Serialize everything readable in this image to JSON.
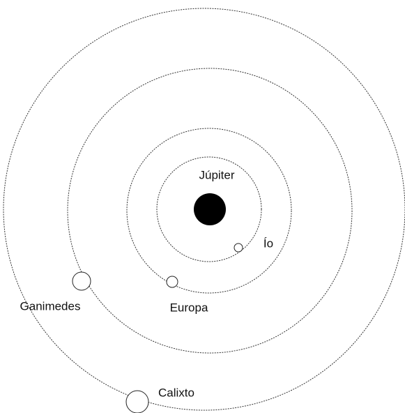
{
  "planet": {
    "label": "Júpiter"
  },
  "moons": [
    {
      "label": "Ío"
    },
    {
      "label": "Europa"
    },
    {
      "label": "Ganimedes"
    },
    {
      "label": "Calixto"
    }
  ]
}
